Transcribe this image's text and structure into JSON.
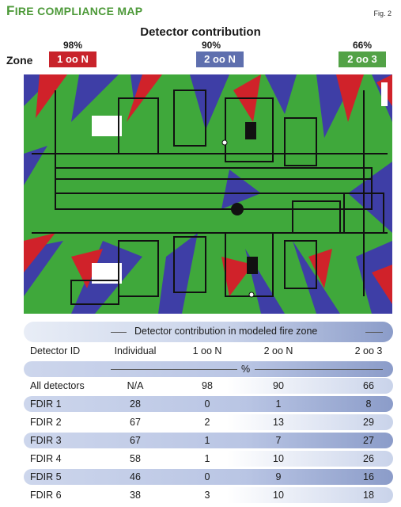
{
  "header": {
    "title_first": "F",
    "title_rest": "IRE COMPLIANCE MAP",
    "fig": "Fig. 2"
  },
  "contribution": {
    "title": "Detector contribution",
    "zone_label": "Zone",
    "zones": [
      {
        "percent": "98%",
        "label": "1 oo N",
        "color": "#c8232b"
      },
      {
        "percent": "90%",
        "label": "2 oo N",
        "color": "#5e6fae"
      },
      {
        "percent": "66%",
        "label": "2 oo 3",
        "color": "#52a246"
      }
    ]
  },
  "map_colors": {
    "green": "#3fa83b",
    "red": "#d0222a",
    "blue": "#3e3ea6",
    "structure": "#111111"
  },
  "table": {
    "group_header": "Detector contribution in modeled fire zone",
    "columns": [
      "Detector ID",
      "Individual",
      "1 oo N",
      "2 oo N",
      "2 oo 3"
    ],
    "unit": "%",
    "rows": [
      {
        "id": "All detectors",
        "values": [
          "N/A",
          "98",
          "90",
          "66"
        ]
      },
      {
        "id": "FDIR 1",
        "values": [
          "28",
          "0",
          "1",
          "8"
        ]
      },
      {
        "id": "FDIR 2",
        "values": [
          "67",
          "2",
          "13",
          "29"
        ]
      },
      {
        "id": "FDIR 3",
        "values": [
          "67",
          "1",
          "7",
          "27"
        ]
      },
      {
        "id": "FDIR 4",
        "values": [
          "58",
          "1",
          "10",
          "26"
        ]
      },
      {
        "id": "FDIR 5",
        "values": [
          "46",
          "0",
          "9",
          "16"
        ]
      },
      {
        "id": "FDIR 6",
        "values": [
          "38",
          "3",
          "10",
          "18"
        ]
      }
    ]
  }
}
